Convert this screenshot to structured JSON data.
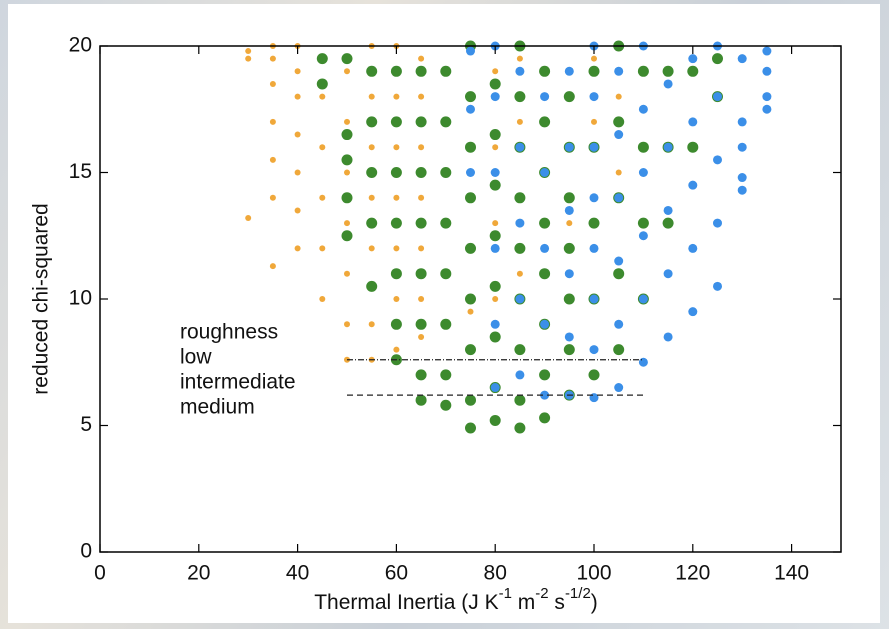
{
  "chart_data": {
    "type": "scatter",
    "ylabel": "reduced chi-squared",
    "xlabel_parts": [
      "Thermal Inertia (J K",
      "-1",
      " m",
      "-2",
      " s",
      "-1/2",
      ")"
    ],
    "xlim": [
      0,
      150
    ],
    "ylim": [
      0,
      20
    ],
    "xticks": [
      0,
      20,
      40,
      60,
      80,
      100,
      120,
      140
    ],
    "yticks": [
      0,
      5,
      10,
      15,
      20
    ],
    "legend_title": "roughness",
    "series": [
      {
        "name": "medium",
        "color": "#f0a83a",
        "marker_size": 3,
        "x": [
          30,
          30,
          30,
          35,
          35,
          35,
          35,
          35,
          35,
          35,
          40,
          40,
          40,
          40,
          40,
          40,
          40,
          45,
          45,
          45,
          45,
          45,
          45,
          50,
          50,
          50,
          50,
          50,
          50,
          50,
          55,
          55,
          55,
          55,
          55,
          55,
          55,
          55,
          60,
          60,
          60,
          60,
          60,
          60,
          60,
          65,
          65,
          65,
          65,
          65,
          65,
          65,
          70,
          70,
          70,
          70,
          70,
          70,
          75,
          75,
          75,
          75,
          75,
          75,
          80,
          80,
          80,
          80,
          85,
          85,
          85,
          85,
          90,
          90,
          90,
          95,
          95,
          95,
          100,
          100,
          100,
          105,
          105,
          110,
          110
        ],
        "values": [
          13.2,
          19.5,
          19.8,
          11.3,
          14,
          15.5,
          17,
          18.5,
          19.5,
          20,
          12,
          13.5,
          15,
          16.5,
          18,
          19,
          20,
          10,
          12,
          14,
          16,
          18,
          19.5,
          7.6,
          9,
          11,
          13,
          15,
          17,
          19,
          7.6,
          9,
          10.5,
          12,
          14,
          16,
          18,
          20,
          8,
          10,
          12,
          14,
          16,
          18,
          20,
          8.5,
          10,
          12,
          14,
          16,
          18,
          19.5,
          9,
          11,
          13,
          15,
          17,
          19,
          9.5,
          12,
          14,
          16,
          18,
          19.8,
          10,
          13,
          16,
          19,
          11,
          14,
          17,
          19.5,
          12,
          15,
          18,
          13,
          16,
          19,
          14,
          17,
          19.5,
          15,
          18,
          16,
          19
        ]
      },
      {
        "name": "intermediate",
        "color": "#3d8a2e",
        "marker_size": 5.5,
        "x": [
          45,
          45,
          50,
          50,
          50,
          50,
          50,
          55,
          55,
          55,
          55,
          55,
          60,
          60,
          60,
          60,
          60,
          60,
          60,
          65,
          65,
          65,
          65,
          65,
          65,
          65,
          65,
          70,
          70,
          70,
          70,
          70,
          70,
          70,
          70,
          75,
          75,
          75,
          75,
          75,
          75,
          75,
          75,
          75,
          80,
          80,
          80,
          80,
          80,
          80,
          80,
          80,
          85,
          85,
          85,
          85,
          85,
          85,
          85,
          85,
          85,
          90,
          90,
          90,
          90,
          90,
          90,
          90,
          90,
          95,
          95,
          95,
          95,
          95,
          95,
          95,
          100,
          100,
          100,
          100,
          100,
          105,
          105,
          105,
          105,
          105,
          110,
          110,
          110,
          110,
          115,
          115,
          115,
          120,
          120,
          125,
          125
        ],
        "values": [
          18.5,
          19.5,
          12.5,
          14,
          15.5,
          16.5,
          19.5,
          10.5,
          13,
          15,
          17,
          19,
          7.6,
          9,
          11,
          13,
          15,
          17,
          19,
          6,
          7,
          9,
          11,
          13,
          15,
          17,
          19,
          5.8,
          7,
          9,
          11,
          13,
          15,
          17,
          19,
          4.9,
          6,
          8,
          10,
          12,
          14,
          16,
          18,
          20,
          5.2,
          6.5,
          8.5,
          10.5,
          12.5,
          14.5,
          16.5,
          18.5,
          4.9,
          6,
          8,
          10,
          12,
          14,
          16,
          18,
          20,
          5.3,
          7,
          9,
          11,
          13,
          15,
          17,
          19,
          6.2,
          8,
          10,
          12,
          14,
          16,
          18,
          7,
          10,
          13,
          16,
          19,
          8,
          11,
          14,
          17,
          20,
          10,
          13,
          16,
          19,
          13,
          16,
          19,
          16,
          19,
          18,
          19.5
        ]
      },
      {
        "name": "low",
        "color": "#3b8fe8",
        "marker_size": 4.5,
        "x": [
          75,
          75,
          75,
          80,
          80,
          80,
          80,
          80,
          80,
          85,
          85,
          85,
          85,
          85,
          90,
          90,
          90,
          90,
          90,
          95,
          95,
          95,
          95,
          95,
          95,
          100,
          100,
          100,
          100,
          100,
          100,
          100,
          100,
          105,
          105,
          105,
          105,
          105,
          105,
          110,
          110,
          110,
          110,
          110,
          110,
          115,
          115,
          115,
          115,
          115,
          120,
          120,
          120,
          120,
          120,
          125,
          125,
          125,
          125,
          125,
          130,
          130,
          130,
          130,
          130,
          135,
          135,
          135,
          135
        ],
        "values": [
          15,
          17.5,
          19.8,
          6.5,
          9,
          12,
          15,
          18,
          20,
          7,
          10,
          13,
          16,
          19,
          6.2,
          9,
          12,
          15,
          18,
          6.2,
          8.5,
          11,
          13.5,
          16,
          19,
          6.1,
          8,
          10,
          12,
          14,
          16,
          18,
          20,
          6.5,
          9,
          11.5,
          14,
          16.5,
          19,
          7.5,
          10,
          12.5,
          15,
          17.5,
          20,
          8.5,
          11,
          13.5,
          16,
          18.5,
          9.5,
          12,
          14.5,
          17,
          19.5,
          10.5,
          13,
          15.5,
          18,
          20,
          14.3,
          14.8,
          16,
          17,
          19.5,
          17.5,
          18,
          19,
          19.8
        ]
      }
    ],
    "reference_lines": [
      {
        "y": 7.6,
        "x_range": [
          50,
          110
        ],
        "dash": "6 2 1 2"
      },
      {
        "y": 6.2,
        "x_range": [
          50,
          110
        ],
        "dash": "6 4"
      }
    ]
  }
}
